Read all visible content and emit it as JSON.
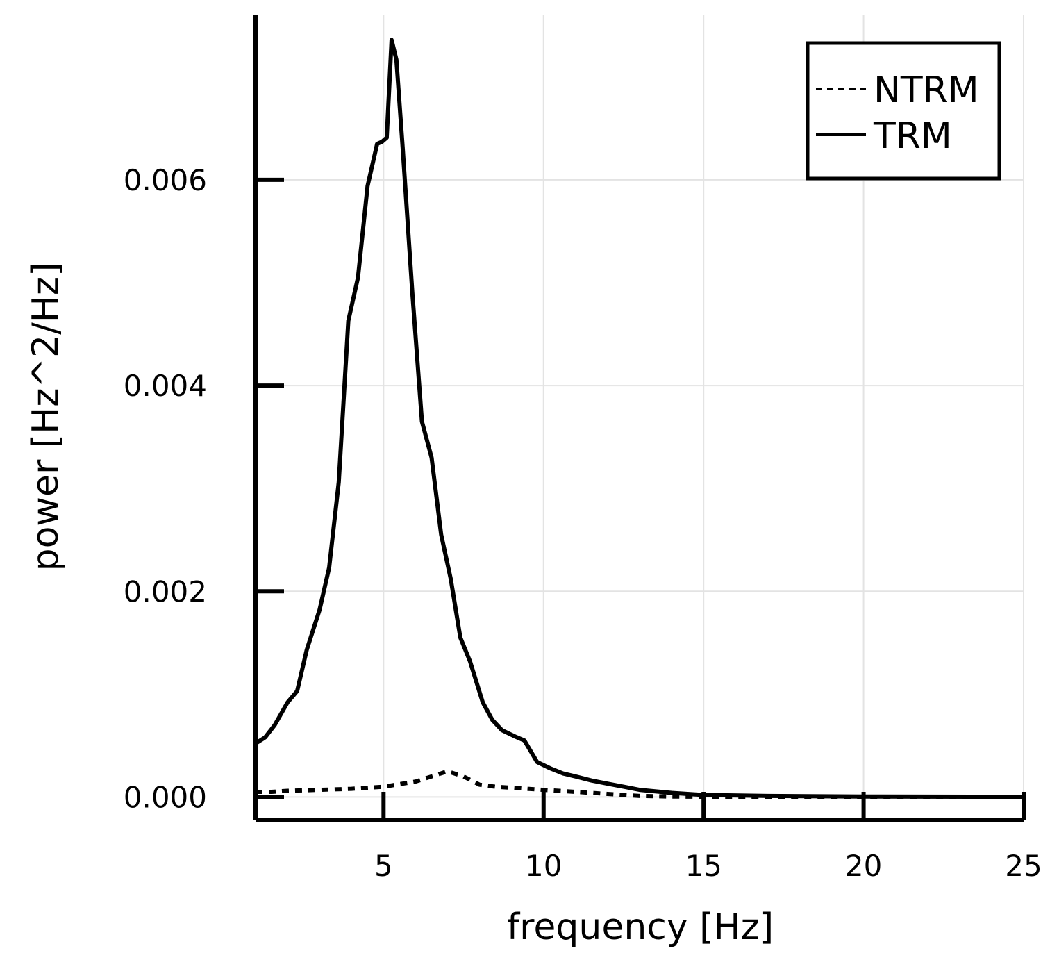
{
  "chart_data": {
    "type": "line",
    "xlabel": "frequency [Hz]",
    "ylabel": "power [Hz^2/Hz]",
    "xlim": [
      1,
      25
    ],
    "ylim": [
      -0.00022,
      0.0076
    ],
    "xticks": [
      5,
      10,
      15,
      20,
      25
    ],
    "yticks": [
      0.0,
      0.002,
      0.004,
      0.006
    ],
    "ytick_labels": [
      "0.000",
      "0.002",
      "0.004",
      "0.006"
    ],
    "grid": true,
    "legend_position": "top-right",
    "series": [
      {
        "name": "NTRM",
        "style": "dashed",
        "color": "#000000",
        "x": [
          1,
          1.5,
          2,
          3,
          4,
          5,
          6,
          6.5,
          7,
          7.5,
          8,
          8.5,
          9,
          10,
          11,
          12,
          13,
          14,
          15,
          16,
          18,
          20,
          22,
          25
        ],
        "y": [
          5e-05,
          5e-05,
          6e-05,
          7e-05,
          8e-05,
          0.0001,
          0.00015,
          0.0002,
          0.00025,
          0.0002,
          0.00012,
          0.0001,
          9e-05,
          7e-05,
          5e-05,
          3e-05,
          1e-05,
          5e-06,
          3e-06,
          2e-06,
          1e-06,
          5e-07,
          3e-07,
          1e-07
        ]
      },
      {
        "name": "TRM",
        "style": "solid",
        "color": "#000000",
        "x": [
          1,
          1.3,
          1.6,
          2.0,
          2.3,
          2.6,
          3.0,
          3.3,
          3.6,
          3.9,
          4.2,
          4.5,
          4.8,
          4.95,
          5.1,
          5.25,
          5.4,
          5.6,
          5.9,
          6.2,
          6.5,
          6.8,
          7.1,
          7.4,
          7.7,
          8.1,
          8.4,
          8.7,
          9.1,
          9.4,
          9.8,
          10.2,
          10.6,
          11.0,
          11.5,
          12.0,
          12.5,
          13.0,
          14.0,
          15.0,
          17.0,
          20.0,
          25.0
        ],
        "y": [
          0.00052,
          0.00058,
          0.0007,
          0.00092,
          0.00103,
          0.00143,
          0.00182,
          0.00223,
          0.00306,
          0.00463,
          0.00505,
          0.00594,
          0.00635,
          0.00637,
          0.00641,
          0.00736,
          0.00717,
          0.0063,
          0.0049,
          0.00365,
          0.0033,
          0.00255,
          0.00212,
          0.00155,
          0.00132,
          0.00092,
          0.00075,
          0.00065,
          0.00059,
          0.00055,
          0.00034,
          0.00028,
          0.00023,
          0.0002,
          0.00016,
          0.00013,
          0.0001,
          7e-05,
          4e-05,
          2e-05,
          1e-05,
          5e-06,
          2e-06
        ]
      }
    ]
  }
}
